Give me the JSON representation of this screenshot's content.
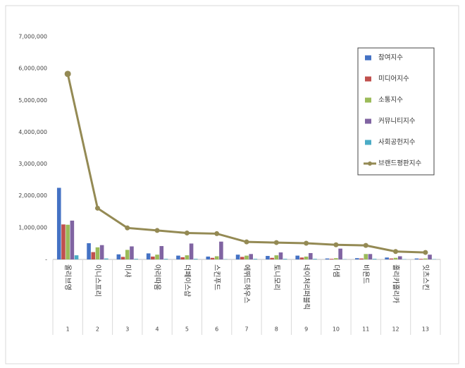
{
  "chart_data": {
    "type": "bar_line",
    "categories": [
      "올리브영",
      "이니스프리",
      "미샤",
      "아리따움",
      "더페이스샵",
      "스킨푸드",
      "에뛰드하우스",
      "토니모리",
      "네이처리퍼블릭",
      "더샘",
      "비욘드",
      "홀리카홀리카",
      "잇츠스킨"
    ],
    "ranks": [
      1,
      2,
      3,
      4,
      5,
      6,
      7,
      8,
      9,
      10,
      11,
      12,
      13
    ],
    "series": [
      {
        "name": "참여지수",
        "color": "#4472c4",
        "values": [
          2250000,
          510000,
          160000,
          190000,
          120000,
          90000,
          150000,
          110000,
          120000,
          30000,
          40000,
          60000,
          30000
        ]
      },
      {
        "name": "미디어지수",
        "color": "#c0504d",
        "values": [
          1100000,
          230000,
          80000,
          90000,
          70000,
          50000,
          80000,
          50000,
          60000,
          20000,
          30000,
          30000,
          20000
        ]
      },
      {
        "name": "소통지수",
        "color": "#9bbb59",
        "values": [
          1090000,
          380000,
          300000,
          150000,
          130000,
          100000,
          120000,
          130000,
          90000,
          40000,
          170000,
          50000,
          30000
        ]
      },
      {
        "name": "커뮤니티지수",
        "color": "#8064a2",
        "values": [
          1220000,
          450000,
          410000,
          420000,
          500000,
          560000,
          170000,
          220000,
          200000,
          340000,
          170000,
          100000,
          150000
        ]
      },
      {
        "name": "사회공헌지수",
        "color": "#4bacc6",
        "values": [
          130000,
          30000,
          20000,
          20000,
          20000,
          10000,
          20000,
          20000,
          20000,
          10000,
          20000,
          10000,
          10000
        ]
      },
      {
        "name": "브랜드평판지수",
        "color": "#948a54",
        "kind": "line",
        "values": [
          5830000,
          1610000,
          990000,
          910000,
          830000,
          810000,
          550000,
          530000,
          510000,
          460000,
          440000,
          250000,
          220000
        ]
      }
    ],
    "ylim": [
      0,
      7000000
    ],
    "yticks": [
      {
        "value": 0,
        "label": "-"
      },
      {
        "value": 1000000,
        "label": "1,000,000"
      },
      {
        "value": 2000000,
        "label": "2,000,000"
      },
      {
        "value": 3000000,
        "label": "3,000,000"
      },
      {
        "value": 4000000,
        "label": "4,000,000"
      },
      {
        "value": 5000000,
        "label": "5,000,000"
      },
      {
        "value": 6000000,
        "label": "6,000,000"
      },
      {
        "value": 7000000,
        "label": "7,000,000"
      }
    ],
    "grid": false,
    "legend": "top-right"
  }
}
